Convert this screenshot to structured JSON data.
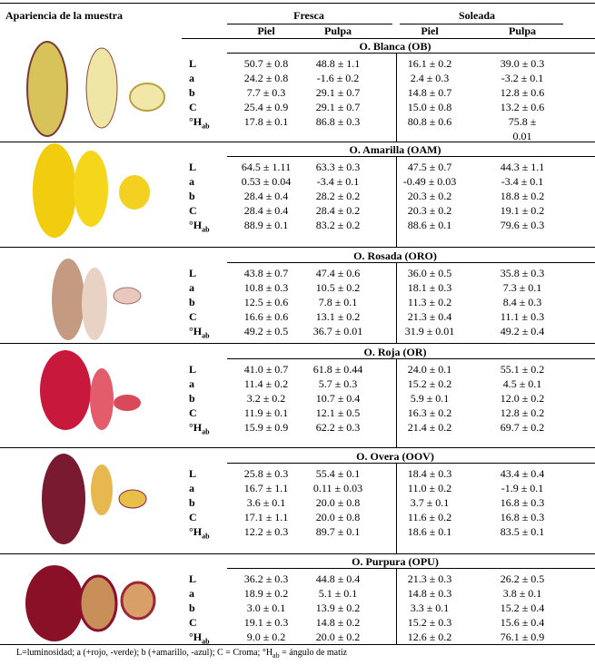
{
  "header": {
    "sample_col": "Apariencia de la muestra",
    "groups": [
      "Fresca",
      "Soleada"
    ],
    "subcols": [
      "Piel",
      "Pulpa",
      "Piel",
      "Pulpa"
    ]
  },
  "samples": [
    {
      "name": "O. Blanca (OB)",
      "rows": [
        {
          "label": "L",
          "values": [
            "50.7 ± 0.8",
            "48.8 ± 1.1",
            "16.1 ± 0.2",
            "39.0 ± 0.3"
          ]
        },
        {
          "label": "a",
          "values": [
            "24.2 ± 0.8",
            "-1.6 ± 0.2",
            "2.4 ± 0.3",
            "-3.2 ± 0.1"
          ]
        },
        {
          "label": "b",
          "values": [
            "7.7 ± 0.3",
            "29.1 ± 0.7",
            "14.8 ± 0.7",
            "12.8 ± 0.6"
          ]
        },
        {
          "label": "C",
          "values": [
            "25.4 ± 0.9",
            "29.1 ± 0.7",
            "15.0 ± 0.8",
            "13.2 ± 0.6"
          ]
        },
        {
          "label": "°H",
          "label_sub": "ab",
          "values": [
            "17.8 ± 0.1",
            "86.8 ± 0.3",
            "80.8 ± 0.6",
            [
              "75.8 ±",
              "0.01"
            ]
          ]
        }
      ]
    },
    {
      "name": "O. Amarilla (OAM)",
      "rows": [
        {
          "label": "L",
          "values": [
            "64.5 ± 1.11",
            "63.3 ± 0.3",
            "47.5 ± 0.7",
            "44.3 ± 1.1"
          ]
        },
        {
          "label": "a",
          "values": [
            "0.53 ± 0.04",
            "-3.4 ± 0.1",
            "-0.49 ± 0.03",
            "-3.4 ± 0.1"
          ]
        },
        {
          "label": "b",
          "values": [
            "28.4 ± 0.4",
            "28.2 ± 0.2",
            "20.3 ± 0.2",
            "18.8 ± 0.2"
          ]
        },
        {
          "label": "C",
          "values": [
            "28.4 ± 0.4",
            "28.4 ± 0.2",
            "20.3 ± 0.2",
            "19.1 ± 0.2"
          ]
        },
        {
          "label": "°H",
          "label_sub": "ab",
          "values": [
            "88.9 ± 0.1",
            "83.2 ± 0.2",
            "88.6 ± 0.1",
            "79.6 ± 0.3"
          ]
        }
      ]
    },
    {
      "name": "O. Rosada (ORO)",
      "rows": [
        {
          "label": "L",
          "values": [
            "43.8 ± 0.7",
            "47.4 ± 0.6",
            "36.0 ± 0.5",
            "35.8 ± 0.3"
          ]
        },
        {
          "label": "a",
          "values": [
            "10.8 ± 0.3",
            "10.5 ± 0.2",
            "18.1 ± 0.3",
            "7.3 ± 0.1"
          ]
        },
        {
          "label": "b",
          "values": [
            "12.5 ± 0.6",
            "7.8 ± 0.1",
            "11.3 ± 0.2",
            "8.4 ± 0.3"
          ]
        },
        {
          "label": "C",
          "values": [
            "16.6 ± 0.6",
            "13.1 ± 0.2",
            "21.3 ± 0.4",
            "11.1 ± 0.3"
          ]
        },
        {
          "label": "°H",
          "label_sub": "ab",
          "values": [
            "49.2 ± 0.5",
            "36.7 ± 0.01",
            "31.9 ± 0.01",
            "49.2 ± 0.4"
          ]
        }
      ]
    },
    {
      "name": "O. Roja (OR)",
      "rows": [
        {
          "label": "L",
          "values": [
            "41.0 ± 0.7",
            "61.8 ± 0.44",
            "24.0 ± 0.1",
            "55.1 ± 0.2"
          ]
        },
        {
          "label": "a",
          "values": [
            "11.4 ± 0.2",
            "5.7 ± 0.3",
            "15.2 ± 0.2",
            "4.5 ± 0.1"
          ]
        },
        {
          "label": "b",
          "values": [
            "3.2 ± 0.2",
            "10.7 ± 0.4",
            "5.9 ± 0.1",
            "12.0 ± 0.2"
          ]
        },
        {
          "label": "C",
          "values": [
            "11.9 ± 0.1",
            "12.1 ± 0.5",
            "16.3 ± 0.2",
            "12.8 ± 0.2"
          ]
        },
        {
          "label": "°H",
          "label_sub": "ab",
          "values": [
            "15.9 ± 0.9",
            "62.2 ± 0.3",
            "21.4 ± 0.2",
            "69.7 ± 0.2"
          ]
        }
      ]
    },
    {
      "name": "O. Overa (OOV)",
      "rows": [
        {
          "label": "L",
          "values": [
            "25.8 ± 0.3",
            "55.4 ± 0.1",
            "18.4 ± 0.3",
            "43.4 ± 0.4"
          ]
        },
        {
          "label": "a",
          "values": [
            "16.7 ± 1.1",
            "0.11 ± 0.03",
            "11.0 ± 0.2",
            "-1.9 ± 0.1"
          ]
        },
        {
          "label": "b",
          "values": [
            "3.6 ± 0.1",
            "20.0 ± 0.8",
            "3.7 ± 0.1",
            "16.8 ± 0.3"
          ]
        },
        {
          "label": "C",
          "values": [
            "17.1 ± 1.1",
            "20.0 ± 0.8",
            "11.6 ± 0.2",
            "16.8 ± 0.3"
          ]
        },
        {
          "label": "°H",
          "label_sub": "ab",
          "values": [
            "12.2 ± 0.3",
            "89.7 ± 0.1",
            "18.6 ± 0.1",
            "83.5 ± 0.1"
          ]
        }
      ]
    },
    {
      "name": "O. Purpura (OPU)",
      "rows": [
        {
          "label": "L",
          "values": [
            "36.2 ± 0.3",
            "44.8 ± 0.4",
            "21.3 ± 0.3",
            "26.2 ± 0.5"
          ]
        },
        {
          "label": "a",
          "values": [
            "18.9 ± 0.2",
            "5.1 ± 0.1",
            "14.8 ± 0.3",
            "3.8 ± 0.1"
          ]
        },
        {
          "label": "b",
          "values": [
            "3.0 ± 0.1",
            "13.9 ± 0.2",
            "3.3 ± 0.1",
            "15.2 ± 0.4"
          ]
        },
        {
          "label": "C",
          "values": [
            "19.1 ± 0.3",
            "14.8 ± 0.2",
            "15.2 ± 0.3",
            "15.6 ± 0.4"
          ]
        },
        {
          "label": "°H",
          "label_sub": "ab",
          "values": [
            "9.0 ± 0.2",
            "20.0 ± 0.2",
            "12.6 ± 0.2",
            "76.1 ± 0.9"
          ]
        }
      ]
    }
  ],
  "footnote": {
    "text": "L=luminosidad; a (+rojo, -verde); b (+amarillo, -azul); C = Croma; °H",
    "sub": "ab",
    "tail": " = ángulo de matiz"
  }
}
